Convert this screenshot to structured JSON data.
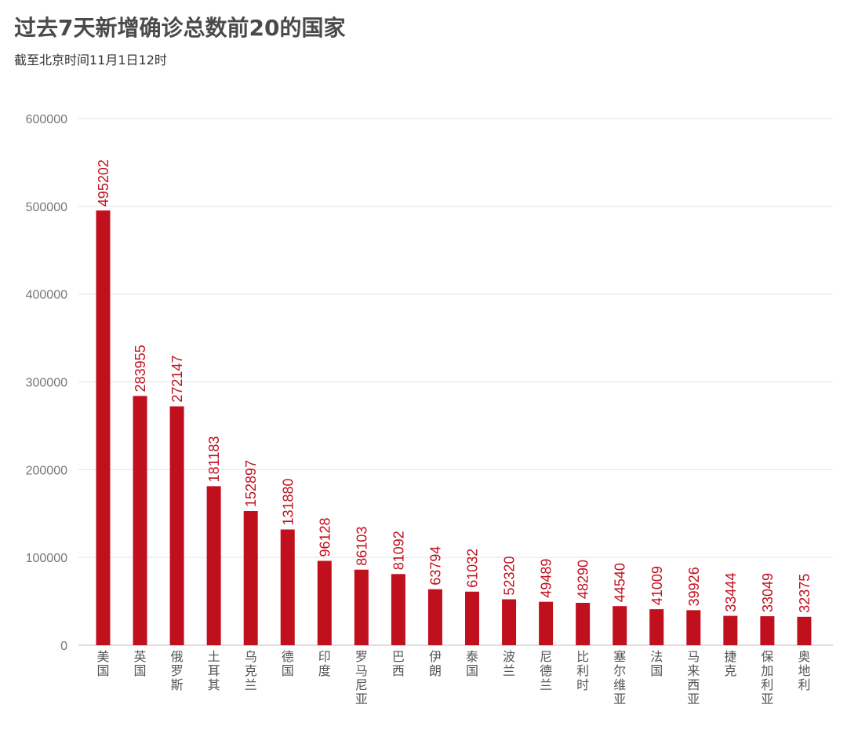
{
  "header": {
    "title": "过去7天新增确诊总数前20的国家",
    "subtitle": "截至北京时间11月1日12时"
  },
  "colors": {
    "bar": "#c0101e",
    "label": "#c0101e",
    "axis_text": "#777777",
    "grid": "#e3e3e3"
  },
  "chart_data": {
    "type": "bar",
    "title": "过去7天新增确诊总数前20的国家",
    "subtitle": "截至北京时间11月1日12时",
    "categories": [
      "美国",
      "英国",
      "俄罗斯",
      "土耳其",
      "乌克兰",
      "德国",
      "印度",
      "罗马尼亚",
      "巴西",
      "伊朗",
      "泰国",
      "波兰",
      "尼德兰",
      "比利时",
      "塞尔维亚",
      "法国",
      "马来西亚",
      "捷克",
      "保加利亚",
      "奥地利"
    ],
    "values": [
      495202,
      283955,
      272147,
      181183,
      152897,
      131880,
      96128,
      86103,
      81092,
      63794,
      61032,
      52320,
      49489,
      48290,
      44540,
      41009,
      39926,
      33444,
      33049,
      32375
    ],
    "yticks": [
      0,
      100000,
      200000,
      300000,
      400000,
      500000,
      600000
    ],
    "ylim": [
      0,
      600000
    ],
    "xlabel": "",
    "ylabel": "",
    "grid": true,
    "legend": "none"
  }
}
